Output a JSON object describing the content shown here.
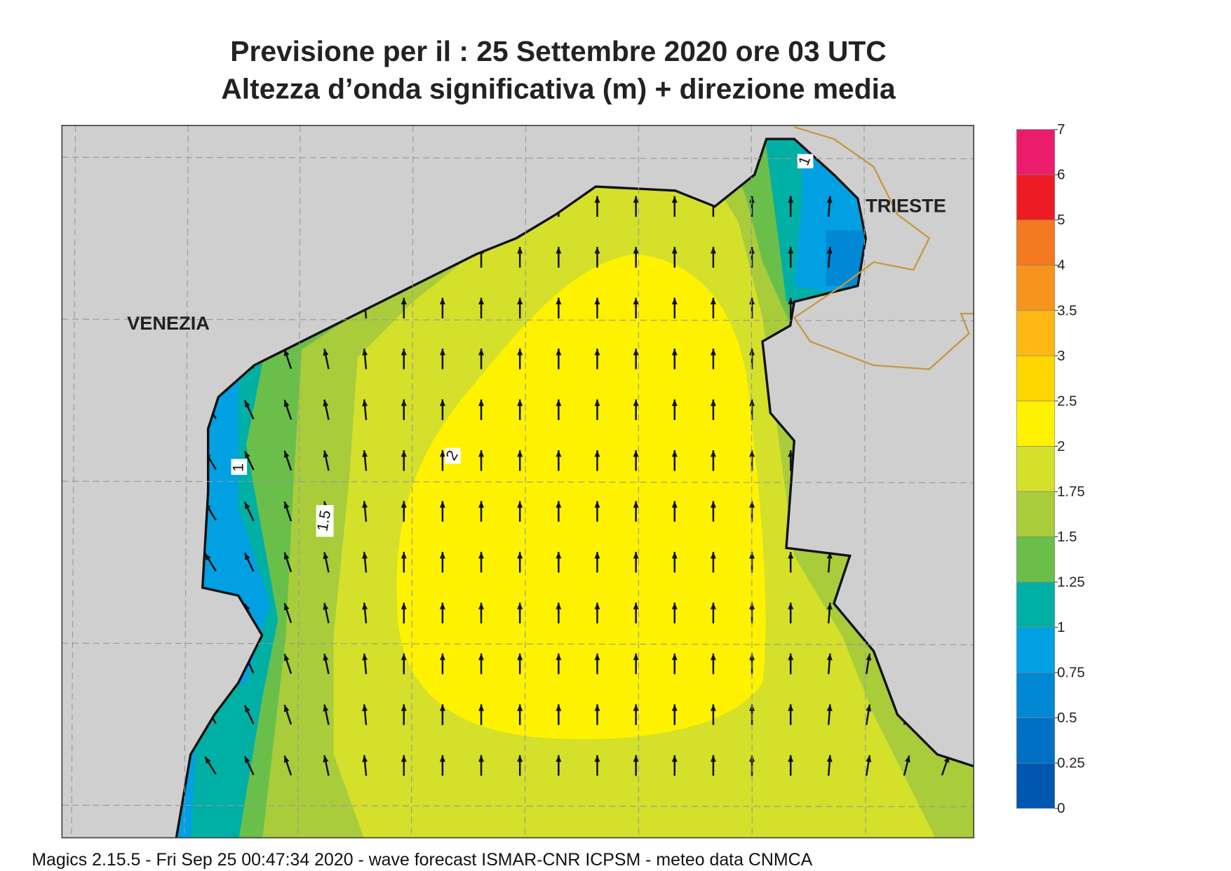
{
  "title": "Previsione per il  :  25 Settembre 2020   ore 03 UTC",
  "subtitle": "Altezza d’onda significativa (m) + direzione media",
  "places": [
    "VENEZIA",
    "TRIESTE"
  ],
  "contour_labels": [
    "1",
    "1.5",
    "2",
    "1"
  ],
  "colorbar": {
    "ticks": [
      0,
      0.25,
      0.5,
      0.75,
      1,
      1.25,
      1.5,
      1.75,
      2,
      2.5,
      3,
      3.5,
      4,
      5,
      6,
      7
    ],
    "colors": [
      "#0057b0",
      "#0070c4",
      "#0088d4",
      "#00a0e3",
      "#00b0a4",
      "#6abf4b",
      "#a8cc3a",
      "#d4e02a",
      "#fff200",
      "#ffd700",
      "#fdb813",
      "#f7941d",
      "#f47920",
      "#ed1c24",
      "#ec1c6c"
    ]
  },
  "footer": "Magics 2.15.5 - Fri Sep 25 00:47:34 2020 - wave forecast  ISMAR-CNR  ICPSM - meteo data    CNMCA"
}
